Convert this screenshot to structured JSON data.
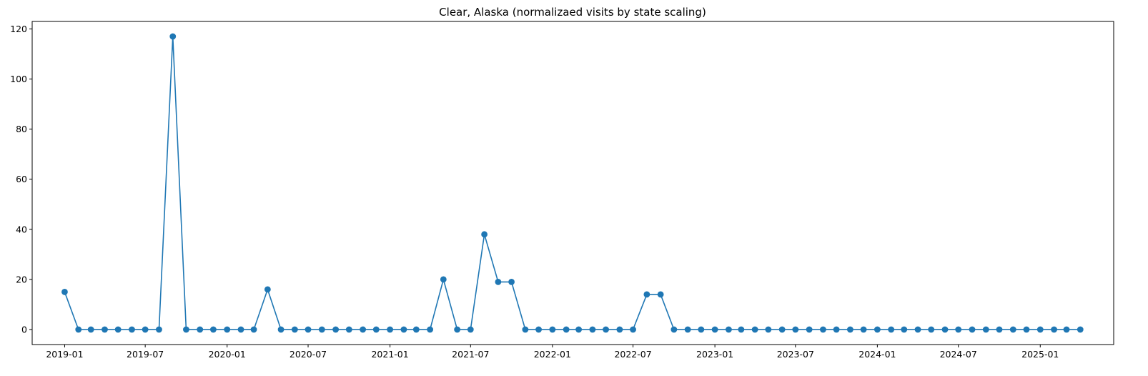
{
  "chart_data": {
    "type": "line",
    "title": "Clear, Alaska (normalizaed visits by state scaling)",
    "xlabel": "",
    "ylabel": "",
    "marker": "circle",
    "grid": false,
    "legend": "none",
    "color": "#1f77b4",
    "ylim": [
      -6,
      123
    ],
    "xlim": [
      "2018-10-20",
      "2025-06-15"
    ],
    "yticks": [
      0,
      20,
      40,
      60,
      80,
      100,
      120
    ],
    "xticks": [
      "2019-01",
      "2019-07",
      "2020-01",
      "2020-07",
      "2021-01",
      "2021-07",
      "2022-01",
      "2022-07",
      "2023-01",
      "2023-07",
      "2024-01",
      "2024-07",
      "2025-01"
    ],
    "x": [
      "2019-01",
      "2019-02",
      "2019-03",
      "2019-04",
      "2019-05",
      "2019-06",
      "2019-07",
      "2019-08",
      "2019-09",
      "2019-10",
      "2019-11",
      "2019-12",
      "2020-01",
      "2020-02",
      "2020-03",
      "2020-04",
      "2020-05",
      "2020-06",
      "2020-07",
      "2020-08",
      "2020-09",
      "2020-10",
      "2020-11",
      "2020-12",
      "2021-01",
      "2021-02",
      "2021-03",
      "2021-04",
      "2021-05",
      "2021-06",
      "2021-07",
      "2021-08",
      "2021-09",
      "2021-10",
      "2021-11",
      "2021-12",
      "2022-01",
      "2022-02",
      "2022-03",
      "2022-04",
      "2022-05",
      "2022-06",
      "2022-07",
      "2022-08",
      "2022-09",
      "2022-10",
      "2022-11",
      "2022-12",
      "2023-01",
      "2023-02",
      "2023-03",
      "2023-04",
      "2023-05",
      "2023-06",
      "2023-07",
      "2023-08",
      "2023-09",
      "2023-10",
      "2023-11",
      "2023-12",
      "2024-01",
      "2024-02",
      "2024-03",
      "2024-04",
      "2024-05",
      "2024-06",
      "2024-07",
      "2024-08",
      "2024-09",
      "2024-10",
      "2024-11",
      "2024-12",
      "2025-01",
      "2025-02",
      "2025-03",
      "2025-04"
    ],
    "series": [
      {
        "values": [
          15,
          0,
          0,
          0,
          0,
          0,
          0,
          0,
          117,
          0,
          0,
          0,
          0,
          0,
          0,
          16,
          0,
          0,
          0,
          0,
          0,
          0,
          0,
          0,
          0,
          0,
          0,
          0,
          20,
          0,
          0,
          38,
          19,
          19,
          0,
          0,
          0,
          0,
          0,
          0,
          0,
          0,
          0,
          14,
          14,
          0,
          0,
          0,
          0,
          0,
          0,
          0,
          0,
          0,
          0,
          0,
          0,
          0,
          0,
          0,
          0,
          0,
          0,
          0,
          0,
          0,
          0,
          0,
          0,
          0,
          0,
          0,
          0,
          0,
          0,
          0
        ]
      }
    ]
  }
}
